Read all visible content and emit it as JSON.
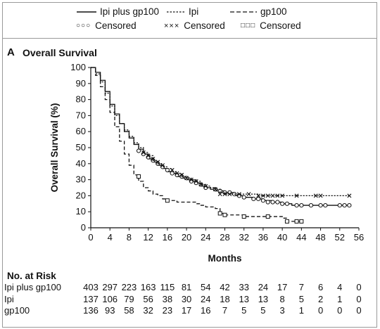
{
  "legend": {
    "ipi_plus_gp100": "Ipi plus gp100",
    "ipi": "Ipi",
    "gp100": "gp100",
    "censored_1": "Censored",
    "censored_2": "Censored",
    "censored_3": "Censored",
    "marker_ipi_plus_gp100": "○○○",
    "marker_ipi": "×××",
    "marker_gp100": "□□□"
  },
  "panel": {
    "letter": "A",
    "title": "Overall Survival"
  },
  "chart_data": {
    "type": "line",
    "title": "Overall Survival",
    "xlabel": "Months",
    "ylabel": "Overall Survival (%)",
    "xlim": [
      0,
      56
    ],
    "ylim": [
      0,
      100
    ],
    "xticks": [
      0,
      4,
      8,
      12,
      16,
      20,
      24,
      28,
      32,
      36,
      40,
      44,
      48,
      52,
      56
    ],
    "yticks": [
      0,
      10,
      20,
      30,
      40,
      50,
      60,
      70,
      80,
      90,
      100
    ],
    "series": [
      {
        "name": "Ipi plus gp100",
        "style": "solid",
        "color": "#111111",
        "censor_marker": "circle",
        "points": [
          [
            0,
            100
          ],
          [
            1,
            97
          ],
          [
            2,
            92
          ],
          [
            3,
            85
          ],
          [
            4,
            77
          ],
          [
            5,
            71
          ],
          [
            6,
            65
          ],
          [
            7,
            60
          ],
          [
            8,
            56
          ],
          [
            9,
            52
          ],
          [
            10,
            49
          ],
          [
            11,
            46
          ],
          [
            12,
            43
          ],
          [
            13,
            41
          ],
          [
            14,
            39
          ],
          [
            15,
            37
          ],
          [
            16,
            35
          ],
          [
            17,
            34
          ],
          [
            18,
            32
          ],
          [
            19,
            31
          ],
          [
            20,
            30
          ],
          [
            21,
            29
          ],
          [
            22,
            28
          ],
          [
            23,
            26
          ],
          [
            24,
            25
          ],
          [
            25,
            24
          ],
          [
            26,
            23
          ],
          [
            28,
            22
          ],
          [
            30,
            20
          ],
          [
            32,
            19
          ],
          [
            34,
            18
          ],
          [
            36,
            17
          ],
          [
            38,
            16
          ],
          [
            40,
            15
          ],
          [
            42,
            14
          ],
          [
            54,
            14
          ]
        ],
        "censored": [
          [
            10,
            48
          ],
          [
            11,
            46
          ],
          [
            12,
            44
          ],
          [
            13,
            42
          ],
          [
            14,
            40
          ],
          [
            15,
            38
          ],
          [
            16,
            36
          ],
          [
            17,
            34
          ],
          [
            18,
            33
          ],
          [
            19,
            32
          ],
          [
            20,
            31
          ],
          [
            21,
            29
          ],
          [
            22,
            28
          ],
          [
            23,
            27
          ],
          [
            24,
            25
          ],
          [
            26,
            24
          ],
          [
            27,
            23
          ],
          [
            28,
            22
          ],
          [
            29,
            22
          ],
          [
            30,
            21
          ],
          [
            31,
            20
          ],
          [
            32,
            19
          ],
          [
            34,
            18
          ],
          [
            35,
            18
          ],
          [
            36,
            17
          ],
          [
            37,
            16
          ],
          [
            38,
            16
          ],
          [
            39,
            16
          ],
          [
            40,
            15
          ],
          [
            41,
            15
          ],
          [
            43,
            14
          ],
          [
            44,
            14
          ],
          [
            46,
            14
          ],
          [
            48,
            14
          ],
          [
            49,
            14
          ],
          [
            52,
            14
          ],
          [
            53,
            14
          ],
          [
            54,
            14
          ]
        ]
      },
      {
        "name": "Ipi",
        "style": "dotted",
        "color": "#111111",
        "censor_marker": "x",
        "points": [
          [
            0,
            100
          ],
          [
            1,
            96
          ],
          [
            2,
            91
          ],
          [
            3,
            84
          ],
          [
            4,
            76
          ],
          [
            5,
            70
          ],
          [
            6,
            65
          ],
          [
            7,
            61
          ],
          [
            8,
            57
          ],
          [
            9,
            53
          ],
          [
            10,
            50
          ],
          [
            11,
            47
          ],
          [
            12,
            45
          ],
          [
            13,
            42
          ],
          [
            14,
            40
          ],
          [
            15,
            38
          ],
          [
            16,
            37
          ],
          [
            17,
            35
          ],
          [
            18,
            34
          ],
          [
            19,
            32
          ],
          [
            20,
            31
          ],
          [
            21,
            30
          ],
          [
            22,
            29
          ],
          [
            23,
            27
          ],
          [
            24,
            26
          ],
          [
            25,
            25
          ],
          [
            26,
            24
          ],
          [
            27,
            22
          ],
          [
            28,
            21
          ],
          [
            30,
            21
          ],
          [
            33,
            21
          ],
          [
            35,
            20
          ],
          [
            54,
            20
          ]
        ],
        "censored": [
          [
            11,
            47
          ],
          [
            12,
            45
          ],
          [
            13,
            43
          ],
          [
            14,
            41
          ],
          [
            15,
            39
          ],
          [
            17,
            36
          ],
          [
            18,
            34
          ],
          [
            19,
            33
          ],
          [
            20,
            31
          ],
          [
            21,
            30
          ],
          [
            22,
            29
          ],
          [
            23,
            27
          ],
          [
            24,
            26
          ],
          [
            26,
            24
          ],
          [
            27,
            21
          ],
          [
            28,
            21
          ],
          [
            29,
            21
          ],
          [
            31,
            21
          ],
          [
            33,
            21
          ],
          [
            35,
            20
          ],
          [
            36,
            20
          ],
          [
            37,
            20
          ],
          [
            38,
            20
          ],
          [
            39,
            20
          ],
          [
            40,
            20
          ],
          [
            43,
            20
          ],
          [
            47,
            20
          ],
          [
            48,
            20
          ],
          [
            54,
            20
          ]
        ]
      },
      {
        "name": "gp100",
        "style": "dashed",
        "color": "#111111",
        "censor_marker": "square",
        "points": [
          [
            0,
            100
          ],
          [
            1,
            95
          ],
          [
            2,
            88
          ],
          [
            3,
            80
          ],
          [
            4,
            72
          ],
          [
            5,
            63
          ],
          [
            6,
            54
          ],
          [
            7,
            46
          ],
          [
            8,
            39
          ],
          [
            9,
            33
          ],
          [
            10,
            29
          ],
          [
            11,
            25
          ],
          [
            12,
            23
          ],
          [
            13,
            21
          ],
          [
            14,
            20
          ],
          [
            15,
            18
          ],
          [
            16,
            17
          ],
          [
            18,
            16
          ],
          [
            20,
            16
          ],
          [
            22,
            15
          ],
          [
            23,
            14
          ],
          [
            24,
            13
          ],
          [
            26,
            12
          ],
          [
            27,
            9
          ],
          [
            28,
            8
          ],
          [
            30,
            8
          ],
          [
            32,
            7
          ],
          [
            36,
            7
          ],
          [
            40,
            6
          ],
          [
            41,
            4
          ],
          [
            44,
            4
          ]
        ],
        "censored": [
          [
            10,
            32
          ],
          [
            16,
            17
          ],
          [
            27,
            9
          ],
          [
            28,
            8
          ],
          [
            32,
            7
          ],
          [
            37,
            7
          ],
          [
            41,
            4
          ],
          [
            43,
            4
          ],
          [
            44,
            4
          ]
        ]
      }
    ]
  },
  "risk": {
    "title": "No. at Risk",
    "rows": [
      {
        "label": "Ipi plus gp100",
        "values": [
          "403",
          "297",
          "223",
          "163",
          "115",
          "81",
          "54",
          "42",
          "33",
          "24",
          "17",
          "7",
          "6",
          "4",
          "0"
        ]
      },
      {
        "label": "Ipi",
        "values": [
          "137",
          "106",
          "79",
          "56",
          "38",
          "30",
          "24",
          "18",
          "13",
          "13",
          "8",
          "5",
          "2",
          "1",
          "0"
        ]
      },
      {
        "label": "gp100",
        "values": [
          "136",
          "93",
          "58",
          "32",
          "23",
          "17",
          "16",
          "7",
          "5",
          "5",
          "3",
          "1",
          "0",
          "0",
          "0"
        ]
      }
    ]
  }
}
